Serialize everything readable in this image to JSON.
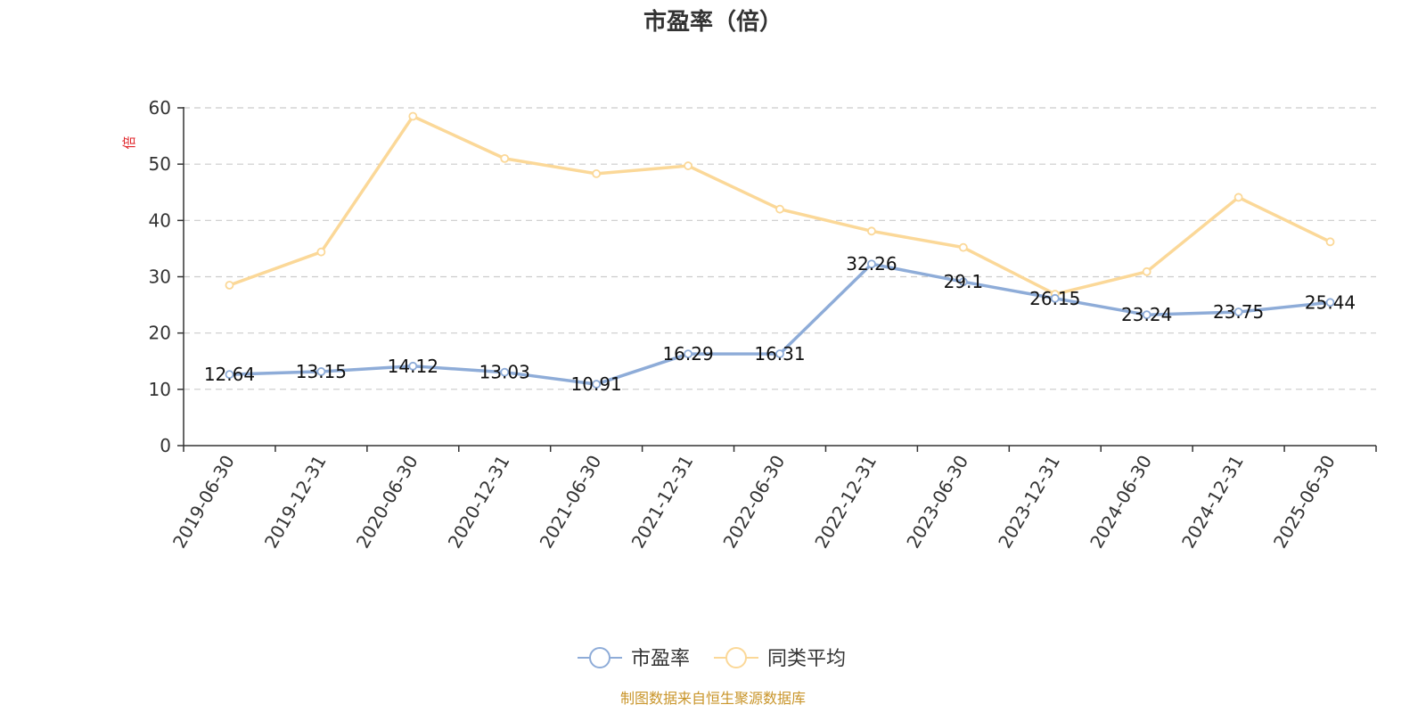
{
  "chart_data": {
    "type": "line",
    "title": "市盈率（倍）",
    "ylabel": "倍",
    "xlabel": "",
    "ylim": [
      0,
      60
    ],
    "yticks": [
      0,
      10,
      20,
      30,
      40,
      50,
      60
    ],
    "grid": true,
    "legend_position": "bottom-center",
    "categories": [
      "2019-06-30",
      "2019-12-31",
      "2020-06-30",
      "2020-12-31",
      "2021-06-30",
      "2021-12-31",
      "2022-06-30",
      "2022-12-31",
      "2023-06-30",
      "2023-12-31",
      "2024-06-30",
      "2024-12-31",
      "2025-06-30"
    ],
    "series": [
      {
        "name": "市盈率",
        "color": "#8eacd8",
        "show_labels": true,
        "values": [
          12.64,
          13.15,
          14.12,
          13.03,
          10.91,
          16.29,
          16.31,
          32.26,
          29.1,
          26.15,
          23.24,
          23.75,
          25.44
        ]
      },
      {
        "name": "同类平均",
        "color": "#fbd898",
        "show_labels": false,
        "values": [
          28.5,
          34.4,
          58.5,
          51.0,
          48.3,
          49.7,
          42.0,
          38.1,
          35.2,
          26.9,
          30.9,
          44.1,
          36.2
        ]
      }
    ],
    "source": "制图数据来自恒生聚源数据库"
  }
}
